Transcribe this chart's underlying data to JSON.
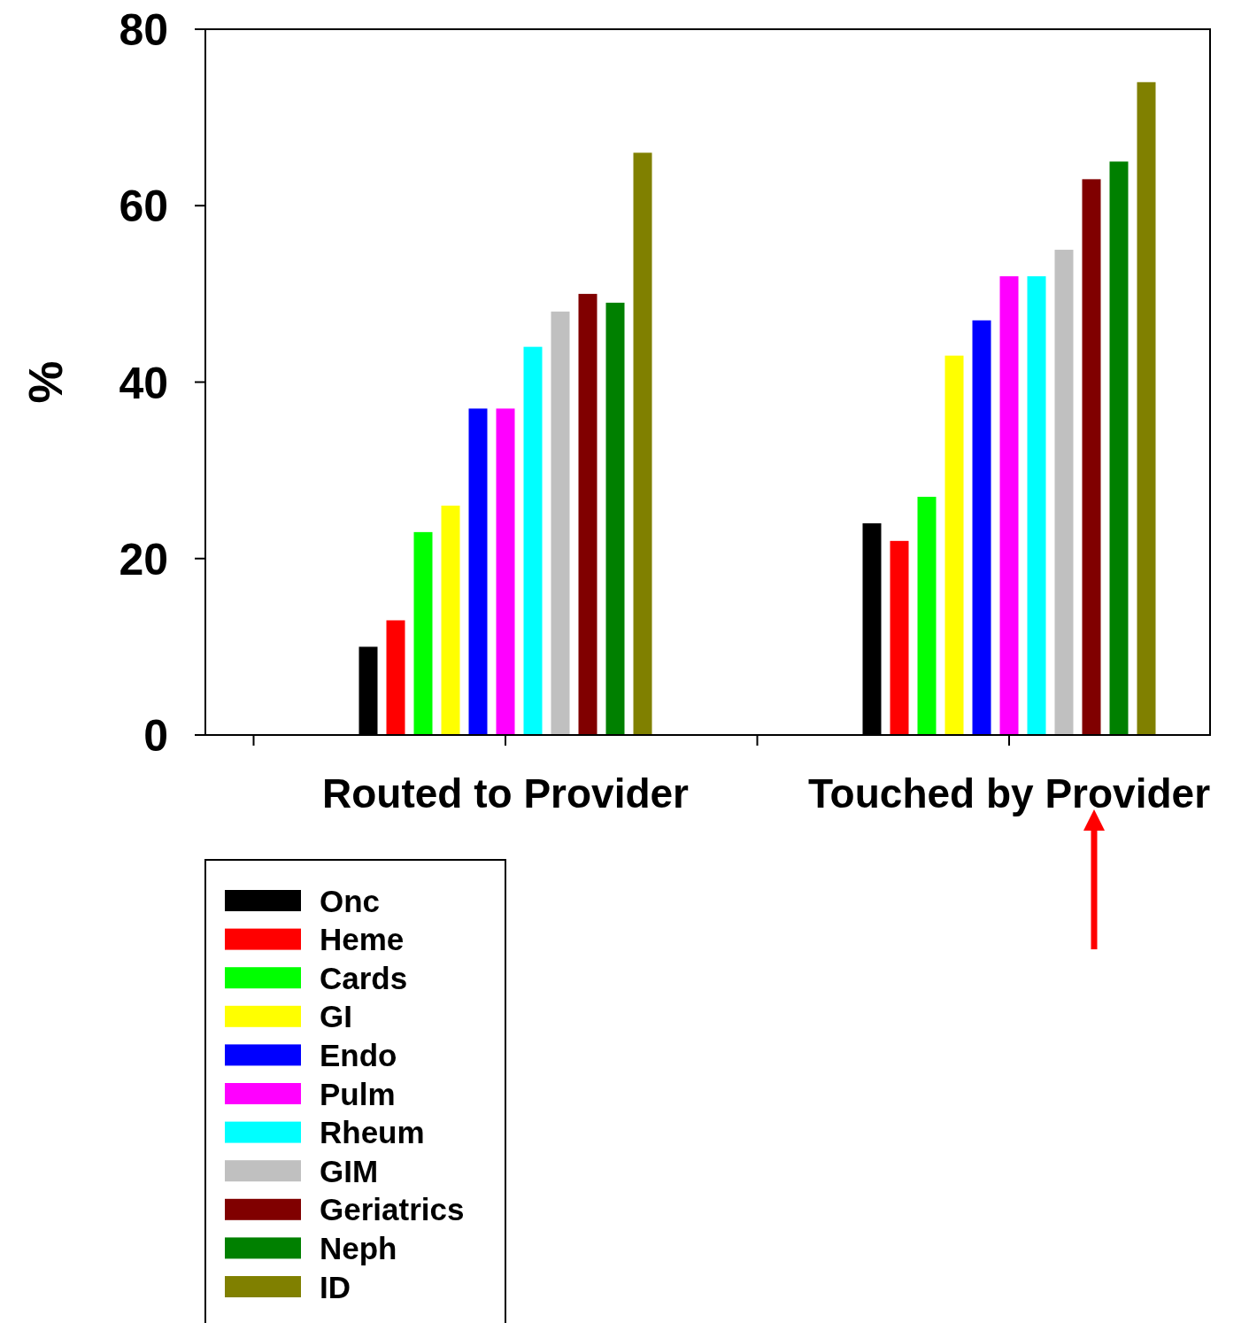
{
  "chart_data": {
    "type": "bar",
    "ylabel": "%",
    "categories": [
      "Routed to Provider",
      "Touched by Provider"
    ],
    "ylim": [
      0,
      80
    ],
    "yticks": [
      0,
      20,
      40,
      60,
      80
    ],
    "grid": false,
    "legend": "bottom left",
    "series": [
      {
        "name": "Onc",
        "color": "#000000",
        "values": [
          10,
          24
        ]
      },
      {
        "name": "Heme",
        "color": "#ff0000",
        "values": [
          13,
          22
        ]
      },
      {
        "name": "Cards",
        "color": "#00ff00",
        "values": [
          23,
          27
        ]
      },
      {
        "name": "GI",
        "color": "#ffff00",
        "values": [
          26,
          43
        ]
      },
      {
        "name": "Endo",
        "color": "#0000ff",
        "values": [
          37,
          47
        ]
      },
      {
        "name": "Pulm",
        "color": "#ff00ff",
        "values": [
          37,
          52
        ]
      },
      {
        "name": "Rheum",
        "color": "#00ffff",
        "values": [
          44,
          52
        ]
      },
      {
        "name": "GIM",
        "color": "#c0c0c0",
        "values": [
          48,
          55
        ]
      },
      {
        "name": "Geriatrics",
        "color": "#800000",
        "values": [
          50,
          63
        ]
      },
      {
        "name": "Neph",
        "color": "#008000",
        "values": [
          49,
          65
        ]
      },
      {
        "name": "ID",
        "color": "#808000",
        "values": [
          66,
          74
        ]
      }
    ]
  }
}
